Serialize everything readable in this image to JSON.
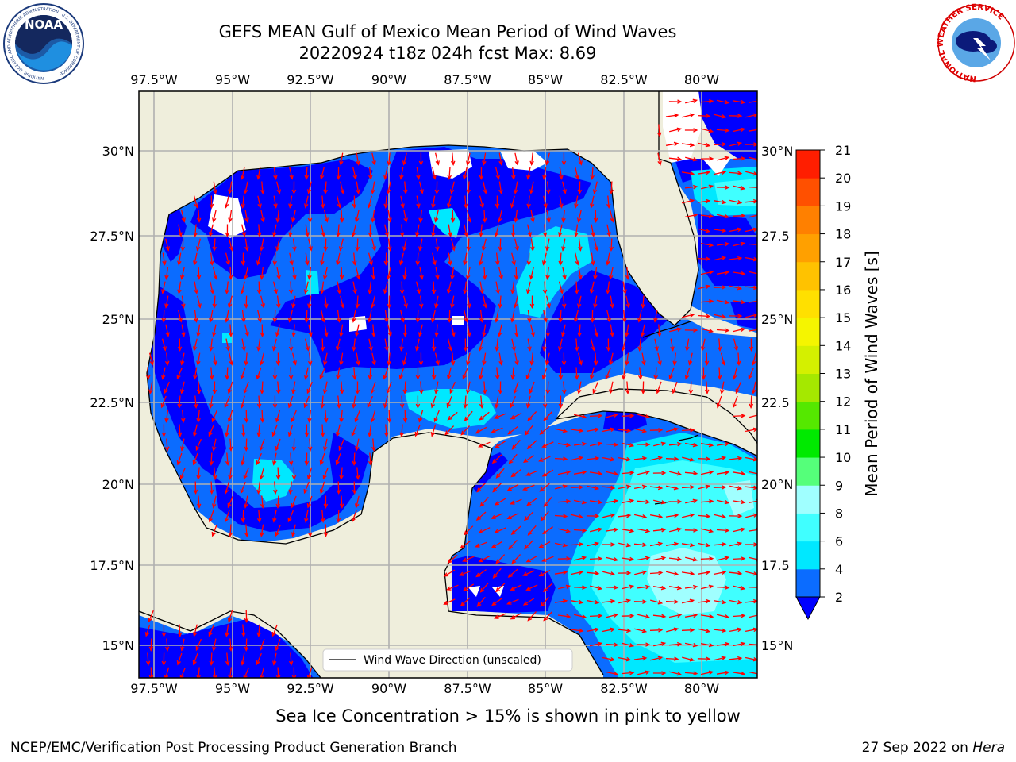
{
  "title_line1": "GEFS MEAN Gulf of Mexico Mean Period of Wind Waves",
  "title_line2": "20220924 t18z 024h fcst   Max: 8.69",
  "footer_center": "Sea Ice Concentration > 15% is shown in pink to yellow",
  "footer_left": "NCEP/EMC/Verification Post Processing Product Generation Branch",
  "footer_right_date": "27 Sep 2022 on ",
  "footer_right_host": "Hera",
  "legend_label": "Wind Wave Direction (unscaled)",
  "colorbar": {
    "label": "Mean Period of Wind Waves [s]",
    "ticks": [
      "2",
      "4",
      "6",
      "8",
      "9",
      "10",
      "11",
      "12",
      "13",
      "14",
      "15",
      "16",
      "17",
      "18",
      "19",
      "20",
      "21"
    ],
    "colors": [
      "#0b6cff",
      "#00e8ff",
      "#40ffff",
      "#a0ffff",
      "#55ff7a",
      "#00ea00",
      "#55e800",
      "#a5e800",
      "#d4f000",
      "#f5f500",
      "#ffe000",
      "#ffc200",
      "#ffa000",
      "#ff8000",
      "#ff5000",
      "#ff1e00"
    ],
    "extend_color": "#0000ff"
  },
  "lon_ticks": [
    "97.5°W",
    "95°W",
    "92.5°W",
    "90°W",
    "87.5°W",
    "85°W",
    "82.5°W",
    "80°W"
  ],
  "lat_ticks_left": [
    "30°N",
    "27.5°N",
    "25°N",
    "22.5°N",
    "20°N",
    "17.5°N",
    "15°N"
  ],
  "lat_ticks_right": [
    "30°N",
    "27.5",
    "25°N",
    "22.5",
    "20°N",
    "17.5",
    "15°N"
  ],
  "logos": {
    "noaa_text": "NOAA",
    "noaa_ring_text": "NATIONAL OCEANIC AND ATMOSPHERIC ADMINISTRATION · U.S. DEPARTMENT OF COMMERCE",
    "nws_ring_text": "NATIONAL WEATHER SERVICE"
  },
  "colors": {
    "land": "#efeedc",
    "zone_dark": "#0000ff",
    "zone_mid": "#0b6cff",
    "zone_cyan": "#00e8ff",
    "zone_light": "#40ffff",
    "zone_pale": "#a0ffff",
    "arrow": "#ff0000",
    "grid": "#b0b0b0"
  }
}
